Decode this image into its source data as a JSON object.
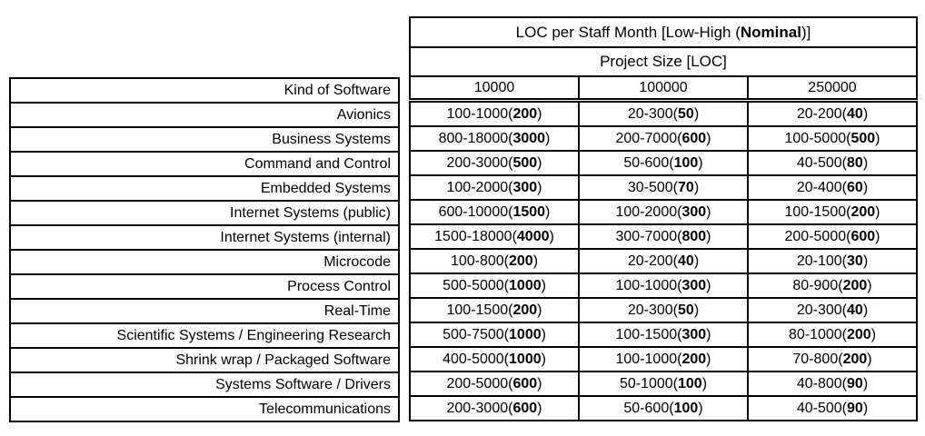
{
  "table": {
    "title": {
      "prefix": "LOC per Staff Month [Low-High (",
      "bold": "Nominal",
      "suffix": ")]"
    },
    "subtitle": "Project Size [LOC]",
    "kind_header": "Kind of Software",
    "size_headers": [
      "10000",
      "100000",
      "250000"
    ],
    "rows": [
      {
        "kind": "Avionics",
        "values": [
          {
            "range": "100-1000",
            "nominal": "200"
          },
          {
            "range": "20-300",
            "nominal": "50"
          },
          {
            "range": "20-200",
            "nominal": "40"
          }
        ]
      },
      {
        "kind": "Business Systems",
        "values": [
          {
            "range": "800-18000",
            "nominal": "3000"
          },
          {
            "range": "200-7000",
            "nominal": "600"
          },
          {
            "range": "100-5000",
            "nominal": "500"
          }
        ]
      },
      {
        "kind": "Command and Control",
        "values": [
          {
            "range": "200-3000",
            "nominal": "500"
          },
          {
            "range": "50-600",
            "nominal": "100"
          },
          {
            "range": "40-500",
            "nominal": "80"
          }
        ]
      },
      {
        "kind": "Embedded Systems",
        "values": [
          {
            "range": "100-2000",
            "nominal": "300"
          },
          {
            "range": "30-500",
            "nominal": "70"
          },
          {
            "range": "20-400",
            "nominal": "60"
          }
        ]
      },
      {
        "kind": "Internet Systems (public)",
        "values": [
          {
            "range": "600-10000",
            "nominal": "1500"
          },
          {
            "range": "100-2000",
            "nominal": "300"
          },
          {
            "range": "100-1500",
            "nominal": "200"
          }
        ]
      },
      {
        "kind": "Internet Systems (internal)",
        "values": [
          {
            "range": "1500-18000",
            "nominal": "4000"
          },
          {
            "range": "300-7000",
            "nominal": "800"
          },
          {
            "range": "200-5000",
            "nominal": "600"
          }
        ]
      },
      {
        "kind": "Microcode",
        "values": [
          {
            "range": "100-800",
            "nominal": "200"
          },
          {
            "range": "20-200",
            "nominal": "40"
          },
          {
            "range": "20-100",
            "nominal": "30"
          }
        ]
      },
      {
        "kind": "Process Control",
        "values": [
          {
            "range": "500-5000",
            "nominal": "1000"
          },
          {
            "range": "100-1000",
            "nominal": "300"
          },
          {
            "range": "80-900",
            "nominal": "200"
          }
        ]
      },
      {
        "kind": "Real-Time",
        "values": [
          {
            "range": "100-1500",
            "nominal": "200"
          },
          {
            "range": "20-300",
            "nominal": "50"
          },
          {
            "range": "20-300",
            "nominal": "40"
          }
        ]
      },
      {
        "kind": "Scientific Systems / Engineering Research",
        "values": [
          {
            "range": "500-7500",
            "nominal": "1000"
          },
          {
            "range": "100-1500",
            "nominal": "300"
          },
          {
            "range": "80-1000",
            "nominal": "200"
          }
        ]
      },
      {
        "kind": "Shrink wrap / Packaged Software",
        "values": [
          {
            "range": "400-5000",
            "nominal": "1000"
          },
          {
            "range": "100-1000",
            "nominal": "200"
          },
          {
            "range": "70-800",
            "nominal": "200"
          }
        ]
      },
      {
        "kind": "Systems Software / Drivers",
        "values": [
          {
            "range": "200-5000",
            "nominal": "600"
          },
          {
            "range": "50-1000",
            "nominal": "100"
          },
          {
            "range": "40-800",
            "nominal": "90"
          }
        ]
      },
      {
        "kind": "Telecommunications",
        "values": [
          {
            "range": "200-3000",
            "nominal": "600"
          },
          {
            "range": "50-600",
            "nominal": "100"
          },
          {
            "range": "40-500",
            "nominal": "90"
          }
        ]
      }
    ]
  },
  "colors": {
    "border": "#000000",
    "text": "#000000",
    "background": "#ffffff"
  }
}
